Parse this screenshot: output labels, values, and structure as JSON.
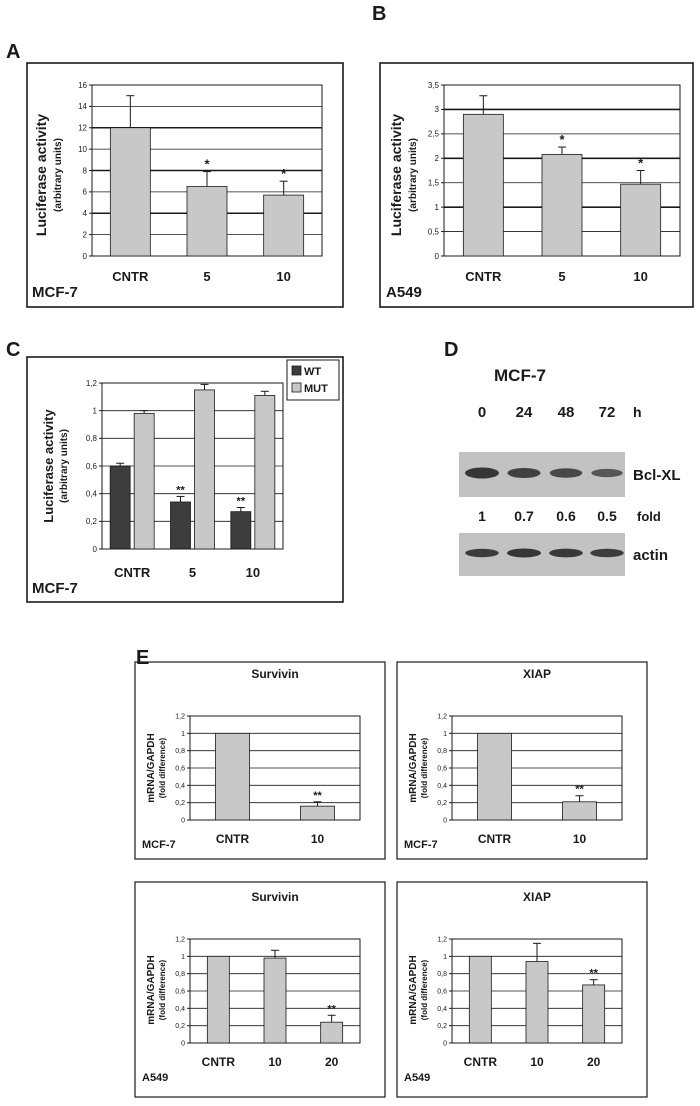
{
  "colors": {
    "bar_light": "#c8c8c8",
    "bar_dark": "#3d3d3d",
    "frame": "#1a1a1a",
    "grid": "#1a1a1a",
    "blot_bg": "#c2c2c2",
    "band": "#2e2e2e"
  },
  "panels": {
    "A": "A",
    "B": "B",
    "C": "C",
    "D": "D",
    "E": "E"
  },
  "chart_data": [
    {
      "id": "A",
      "type": "bar",
      "title": "",
      "xlabel": "",
      "ylabel": "Luciferase activity",
      "ylabel2": "(arbitrary units)",
      "cell_line": "MCF-7",
      "categories": [
        "CNTR",
        "5",
        "10"
      ],
      "values": [
        12.0,
        6.5,
        5.7
      ],
      "errors": [
        3.0,
        1.4,
        1.3
      ],
      "significance": [
        "",
        "*",
        "*"
      ],
      "ylim": [
        0,
        16
      ],
      "yticks": [
        "0",
        "2",
        "4",
        "6",
        "8",
        "10",
        "12",
        "14",
        "16"
      ]
    },
    {
      "id": "B",
      "type": "bar",
      "title": "",
      "xlabel": "",
      "ylabel": "Luciferase activity",
      "ylabel2": "(arbitrary units)",
      "cell_line": "A549",
      "categories": [
        "CNTR",
        "5",
        "10"
      ],
      "values": [
        2.9,
        2.08,
        1.47
      ],
      "errors": [
        0.38,
        0.15,
        0.28
      ],
      "significance": [
        "",
        "*",
        "*"
      ],
      "ylim": [
        0,
        3.5
      ],
      "yticks": [
        "0",
        "0,5",
        "1",
        "1,5",
        "2",
        "2,5",
        "3",
        "3,5"
      ]
    },
    {
      "id": "C",
      "type": "bar",
      "title": "",
      "xlabel": "",
      "ylabel": "Luciferase activity",
      "ylabel2": "(arbitrary units)",
      "cell_line": "MCF-7",
      "categories": [
        "CNTR",
        "5",
        "10"
      ],
      "series": [
        {
          "name": "WT",
          "values": [
            0.6,
            0.34,
            0.27
          ],
          "errors": [
            0.02,
            0.04,
            0.03
          ],
          "significance": [
            "",
            "**",
            "**"
          ]
        },
        {
          "name": "MUT",
          "values": [
            0.98,
            1.15,
            1.11
          ],
          "errors": [
            0.02,
            0.04,
            0.03
          ],
          "significance": [
            "",
            "",
            ""
          ]
        }
      ],
      "legend": [
        "WT",
        "MUT"
      ],
      "ylim": [
        0,
        1.2
      ],
      "yticks": [
        "0",
        "0,2",
        "0,4",
        "0,6",
        "0,8",
        "1",
        "1,2"
      ]
    },
    {
      "id": "E1",
      "type": "bar",
      "title": "Survivin",
      "xlabel": "",
      "ylabel": "mRNA/GAPDH",
      "ylabel2": "(fold difference)",
      "cell_line": "MCF-7",
      "categories": [
        "CNTR",
        "10"
      ],
      "values": [
        1.0,
        0.16
      ],
      "errors": [
        0.0,
        0.05
      ],
      "significance": [
        "",
        "**"
      ],
      "ylim": [
        0,
        1.2
      ],
      "yticks": [
        "0",
        "0,2",
        "0,4",
        "0,6",
        "0,8",
        "1",
        "1,2"
      ]
    },
    {
      "id": "E2",
      "type": "bar",
      "title": "XIAP",
      "xlabel": "",
      "ylabel": "mRNA/GAPDH",
      "ylabel2": "(fold difference)",
      "cell_line": "MCF-7",
      "categories": [
        "CNTR",
        "10"
      ],
      "values": [
        1.0,
        0.21
      ],
      "errors": [
        0.0,
        0.07
      ],
      "significance": [
        "",
        "**"
      ],
      "ylim": [
        0,
        1.2
      ],
      "yticks": [
        "0",
        "0,2",
        "0,4",
        "0,6",
        "0,8",
        "1",
        "1,2"
      ]
    },
    {
      "id": "E3",
      "type": "bar",
      "title": "Survivin",
      "xlabel": "",
      "ylabel": "mRNA/GAPDH",
      "ylabel2": "(fold difference)",
      "cell_line": "A549",
      "categories": [
        "CNTR",
        "10",
        "20"
      ],
      "values": [
        1.0,
        0.98,
        0.24
      ],
      "errors": [
        0.0,
        0.09,
        0.08
      ],
      "significance": [
        "",
        "",
        "**"
      ],
      "ylim": [
        0,
        1.2
      ],
      "yticks": [
        "0",
        "0,2",
        "0,4",
        "0,6",
        "0,8",
        "1",
        "1,2"
      ]
    },
    {
      "id": "E4",
      "type": "bar",
      "title": "XIAP",
      "xlabel": "",
      "ylabel": "mRNA/GAPDH",
      "ylabel2": "(fold difference)",
      "cell_line": "A549",
      "categories": [
        "CNTR",
        "10",
        "20"
      ],
      "values": [
        1.0,
        0.94,
        0.67
      ],
      "errors": [
        0.0,
        0.21,
        0.06
      ],
      "significance": [
        "",
        "",
        "**"
      ],
      "ylim": [
        0,
        1.2
      ],
      "yticks": [
        "0",
        "0,2",
        "0,4",
        "0,6",
        "0,8",
        "1",
        "1,2"
      ]
    }
  ],
  "blot": {
    "title": "MCF-7",
    "timepoints": [
      "0",
      "24",
      "48",
      "72"
    ],
    "time_unit": "h",
    "protein": "Bcl-XL",
    "folds": [
      "1",
      "0.7",
      "0.6",
      "0.5"
    ],
    "fold_label": "fold",
    "loading_control": "actin",
    "band_intensity_bcl": [
      1.0,
      0.85,
      0.75,
      0.55
    ],
    "band_intensity_actin": [
      0.9,
      1.0,
      0.95,
      0.9
    ]
  }
}
